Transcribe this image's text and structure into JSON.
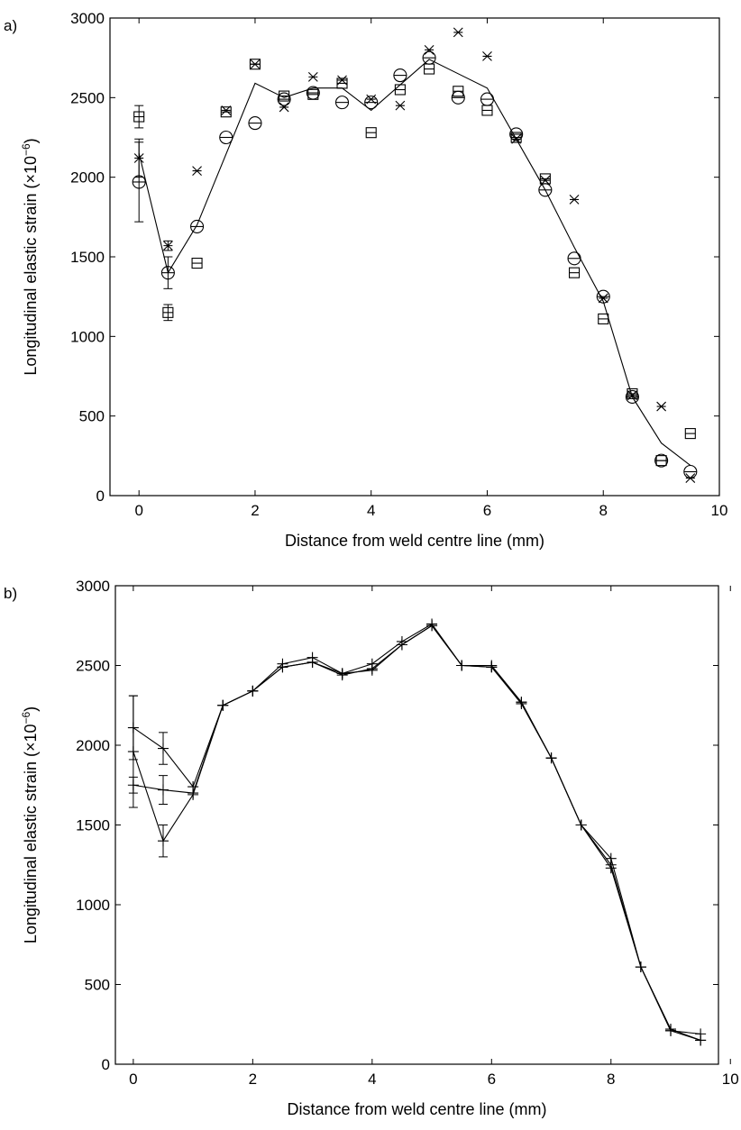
{
  "chart_data": [
    {
      "panel_label": "a)",
      "type": "scatter",
      "xlabel": "Distance from weld centre line (mm)",
      "ylabel_main": "Longitudinal elastic strain (×10",
      "ylabel_exp": "−6",
      "ylabel_end": ")",
      "xlim": [
        -0.5,
        10
      ],
      "ylim": [
        0,
        3000
      ],
      "xticks": [
        0,
        2,
        4,
        6,
        8,
        10
      ],
      "yticks": [
        0,
        500,
        1000,
        1500,
        2000,
        2500,
        3000
      ],
      "grid": false,
      "series": [
        {
          "marker": "circle",
          "x": [
            0,
            0.5,
            1,
            1.5,
            2,
            2.5,
            3,
            3.5,
            4,
            4.5,
            5,
            5.5,
            6,
            6.5,
            7,
            7.5,
            8,
            8.5,
            9,
            9.5
          ],
          "y": [
            1970,
            1400,
            1690,
            2250,
            2340,
            2490,
            2530,
            2470,
            2470,
            2640,
            2750,
            2500,
            2490,
            2270,
            1920,
            1490,
            1250,
            620,
            220,
            150
          ],
          "err": [
            250,
            100,
            0,
            0,
            0,
            0,
            0,
            0,
            0,
            0,
            0,
            0,
            0,
            0,
            0,
            0,
            0,
            0,
            0,
            0
          ]
        },
        {
          "marker": "square",
          "x": [
            0,
            0.5,
            1,
            1.5,
            2,
            2.5,
            3,
            3.5,
            4,
            4.5,
            5,
            5.5,
            6,
            6.5,
            7,
            7.5,
            8,
            8.5,
            9,
            9.5
          ],
          "y": [
            2380,
            1150,
            1460,
            2410,
            2710,
            2510,
            2520,
            2590,
            2280,
            2550,
            2680,
            2540,
            2420,
            2250,
            1990,
            1400,
            1110,
            640,
            220,
            390
          ],
          "err": [
            70,
            50,
            0,
            0,
            0,
            0,
            0,
            0,
            0,
            0,
            0,
            0,
            0,
            0,
            0,
            0,
            0,
            0,
            0,
            0
          ]
        },
        {
          "marker": "x",
          "x": [
            0,
            0.5,
            1,
            1.5,
            2,
            2.5,
            3,
            3.5,
            4,
            4.5,
            5,
            5.5,
            6,
            6.5,
            7,
            7.5,
            8,
            8.5,
            9,
            9.5
          ],
          "y": [
            2120,
            1570,
            2040,
            2420,
            2710,
            2440,
            2630,
            2610,
            2490,
            2450,
            2800,
            2910,
            2760,
            2240,
            1980,
            1860,
            1240,
            630,
            560,
            110
          ],
          "err": [
            120,
            30,
            0,
            0,
            0,
            0,
            0,
            0,
            0,
            0,
            0,
            0,
            0,
            0,
            0,
            0,
            0,
            0,
            0,
            0
          ]
        },
        {
          "marker": "line",
          "x": [
            0,
            0.5,
            1,
            2,
            2.5,
            3,
            3.5,
            4,
            5,
            6,
            7,
            7.5,
            8,
            8.5,
            9,
            9.5
          ],
          "y": [
            2150,
            1400,
            1700,
            2590,
            2500,
            2560,
            2560,
            2420,
            2740,
            2560,
            1920,
            1560,
            1220,
            620,
            330,
            190
          ]
        }
      ]
    },
    {
      "panel_label": "b)",
      "type": "line",
      "xlabel": "Distance from weld centre line (mm)",
      "ylabel_main": "Longitudinal elastic strain (×10",
      "ylabel_exp": "−6",
      "ylabel_end": ")",
      "xlim": [
        -0.3,
        9.8
      ],
      "ylim": [
        0,
        3000
      ],
      "xticks": [
        0,
        2,
        4,
        6,
        8,
        10
      ],
      "yticks": [
        0,
        500,
        1000,
        1500,
        2000,
        2500,
        3000
      ],
      "grid": false,
      "series": [
        {
          "marker": "plus",
          "x": [
            0,
            0.5,
            1,
            1.5,
            2,
            2.5,
            3,
            3.5,
            4,
            4.5,
            5,
            5.5,
            6,
            6.5,
            7,
            7.5,
            8,
            8.5,
            9,
            9.5
          ],
          "y": [
            1960,
            1400,
            1690,
            2250,
            2340,
            2490,
            2520,
            2450,
            2470,
            2630,
            2750,
            2500,
            2490,
            2270,
            1920,
            1500,
            1250,
            610,
            220,
            150
          ],
          "err": [
            350,
            100,
            0,
            0,
            0,
            0,
            0,
            0,
            0,
            0,
            0,
            0,
            0,
            0,
            0,
            0,
            0,
            0,
            0,
            0
          ]
        },
        {
          "marker": "plus",
          "x": [
            0,
            0.5,
            1,
            1.5,
            2,
            2.5,
            3,
            3.5,
            4,
            4.5,
            5,
            5.5,
            6,
            6.5,
            7,
            7.5,
            8,
            8.5,
            9,
            9.5
          ],
          "y": [
            2110,
            1980,
            1740,
            2250,
            2340,
            2510,
            2550,
            2450,
            2510,
            2650,
            2760,
            2500,
            2500,
            2270,
            1920,
            1500,
            1290,
            610,
            210,
            190
          ],
          "err": [
            200,
            100,
            0,
            0,
            0,
            0,
            0,
            0,
            0,
            0,
            0,
            0,
            0,
            0,
            0,
            0,
            0,
            0,
            0,
            0
          ]
        },
        {
          "marker": "plus",
          "x": [
            0,
            0.5,
            1,
            1.5,
            2,
            2.5,
            3,
            3.5,
            4,
            4.5,
            5,
            5.5,
            6,
            6.5,
            7,
            7.5,
            8,
            8.5,
            9,
            9.5
          ],
          "y": [
            1750,
            1720,
            1700,
            2250,
            2340,
            2490,
            2520,
            2440,
            2480,
            2630,
            2750,
            2500,
            2490,
            2260,
            1920,
            1500,
            1230,
            610,
            210,
            150
          ],
          "err": [
            50,
            90,
            0,
            0,
            0,
            0,
            0,
            0,
            0,
            0,
            0,
            0,
            0,
            0,
            0,
            0,
            0,
            0,
            0,
            0
          ]
        }
      ]
    }
  ]
}
